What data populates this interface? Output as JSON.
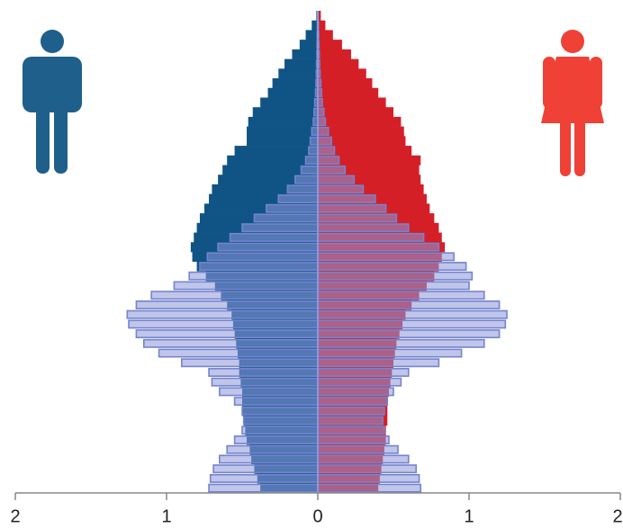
{
  "chart_data": {
    "type": "pyramid",
    "categories": [
      null,
      null,
      null,
      null,
      null,
      null,
      null,
      null,
      null,
      null,
      null,
      null,
      null,
      null,
      null,
      null,
      null,
      null,
      null,
      null,
      null,
      null,
      null,
      null,
      null,
      null,
      null,
      null,
      null,
      null,
      null,
      null,
      null,
      null,
      null,
      null,
      null,
      null,
      null,
      null,
      null,
      null,
      null,
      null,
      null,
      null,
      null,
      null,
      null,
      null
    ],
    "series": [
      {
        "color": "#0f5485",
        "values": [
          -0.38,
          -0.4,
          -0.42,
          -0.44,
          -0.45,
          -0.47,
          -0.48,
          -0.49,
          -0.5,
          -0.5,
          -0.5,
          -0.51,
          -0.52,
          -0.52,
          -0.53,
          -0.54,
          -0.55,
          -0.56,
          -0.57,
          -0.6,
          -0.64,
          -0.68,
          -0.74,
          -0.8,
          -0.83,
          -0.84,
          -0.82,
          -0.8,
          -0.78,
          -0.75,
          -0.72,
          -0.7,
          -0.66,
          -0.63,
          -0.6,
          -0.55,
          -0.47,
          -0.47,
          -0.46,
          -0.43,
          -0.38,
          -0.33,
          -0.3,
          -0.26,
          -0.22,
          -0.17,
          -0.12,
          -0.08,
          -0.04,
          -0.01
        ]
      },
      {
        "color": "#d41f27",
        "values": [
          0.4,
          0.41,
          0.42,
          0.43,
          0.44,
          0.45,
          0.45,
          0.46,
          0.46,
          0.46,
          0.47,
          0.48,
          0.49,
          0.5,
          0.51,
          0.52,
          0.54,
          0.56,
          0.58,
          0.62,
          0.67,
          0.72,
          0.77,
          0.8,
          0.82,
          0.84,
          0.82,
          0.8,
          0.77,
          0.74,
          0.72,
          0.7,
          0.68,
          0.67,
          0.68,
          0.62,
          0.58,
          0.57,
          0.55,
          0.5,
          0.45,
          0.4,
          0.36,
          0.32,
          0.27,
          0.22,
          0.16,
          0.1,
          0.05,
          0.02
        ]
      },
      {
        "color": "#8c96d8",
        "values": [
          -0.72,
          -0.71,
          -0.69,
          -0.65,
          -0.6,
          -0.55,
          -0.5,
          -0.49,
          -0.5,
          -0.55,
          -0.65,
          -0.7,
          -0.72,
          -0.9,
          -1.05,
          -1.15,
          -1.2,
          -1.25,
          -1.26,
          -1.2,
          -1.1,
          -0.95,
          -0.85,
          -0.78,
          -0.73,
          -0.66,
          -0.58,
          -0.5,
          -0.42,
          -0.34,
          -0.26,
          -0.2,
          -0.15,
          -0.11,
          -0.08,
          -0.06,
          -0.05,
          -0.04,
          -0.03,
          -0.025,
          -0.02,
          -0.015,
          -0.012,
          -0.01,
          -0.008,
          -0.006,
          -0.005,
          -0.004,
          -0.003,
          -0.002
        ]
      },
      {
        "color": "#8c96d8",
        "values": [
          0.68,
          0.67,
          0.65,
          0.6,
          0.53,
          0.47,
          0.44,
          0.43,
          0.44,
          0.46,
          0.5,
          0.55,
          0.6,
          0.8,
          0.95,
          1.1,
          1.2,
          1.24,
          1.25,
          1.2,
          1.1,
          1.0,
          1.02,
          0.98,
          0.9,
          0.8,
          0.7,
          0.6,
          0.52,
          0.45,
          0.38,
          0.3,
          0.24,
          0.18,
          0.14,
          0.11,
          0.09,
          0.07,
          0.05,
          0.04,
          0.03,
          0.025,
          0.02,
          0.015,
          0.012,
          0.01,
          0.008,
          0.006,
          0.004,
          0.002
        ]
      }
    ],
    "xlim": [
      -2,
      2
    ],
    "xticks": [
      {
        "value": -2,
        "label": "2"
      },
      {
        "value": -1,
        "label": "1"
      },
      0,
      {
        "value": 1,
        "label": "1"
      },
      {
        "value": 2,
        "label": "2"
      }
    ]
  }
}
